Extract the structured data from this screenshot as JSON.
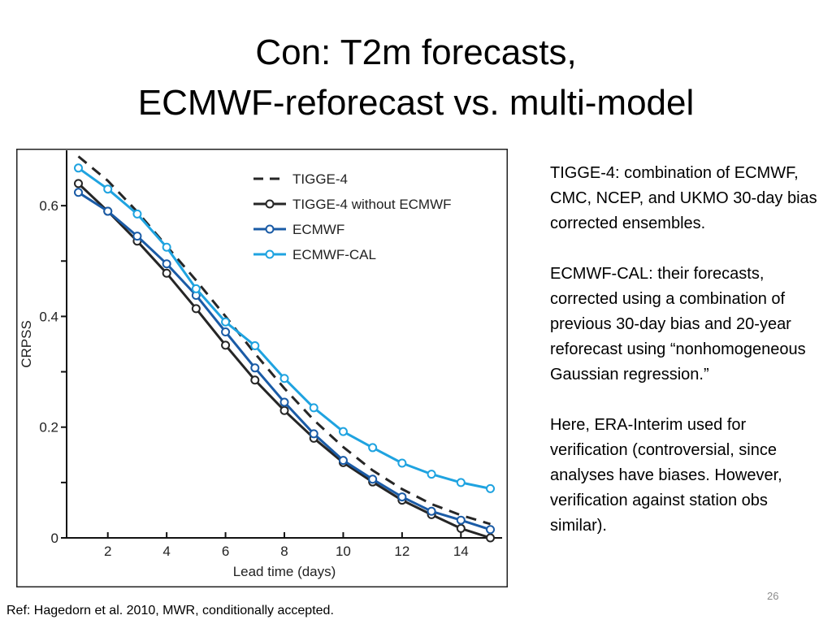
{
  "slide": {
    "title_line1": "Con: T2m forecasts,",
    "title_line2": "ECMWF-reforecast vs. multi-model",
    "notes": [
      "TIGGE-4: combination of ECMWF, CMC, NCEP, and UKMO 30-day bias corrected ensembles.",
      "ECMWF-CAL: their forecasts, corrected using a combination of previous 30-day bias and 20-year reforecast using “nonhomogeneous Gaussian regression.”",
      "Here, ERA-Interim used for verification (controversial, since analyses have biases. However, verification against station obs similar)."
    ],
    "footnote": "Ref: Hagedorn et al. 2010, MWR, conditionally accepted.",
    "page_number": "26"
  },
  "chart_data": {
    "type": "line",
    "title": "",
    "xlabel": "Lead time (days)",
    "ylabel": "CRPSS",
    "xlim": [
      0.6,
      15.4
    ],
    "ylim": [
      0,
      0.7
    ],
    "xticks": [
      2,
      4,
      6,
      8,
      10,
      12,
      14
    ],
    "xticklabels": [
      "2",
      "4",
      "6",
      "8",
      "10",
      "12",
      "14"
    ],
    "yticks": [
      0,
      0.2,
      0.4,
      0.6
    ],
    "yticklabels": [
      "0",
      "0.2",
      "0.4",
      "0.6"
    ],
    "grid": false,
    "legend_position": "top-right",
    "x": [
      1,
      2,
      3,
      4,
      5,
      6,
      7,
      8,
      9,
      10,
      11,
      12,
      13,
      14,
      15
    ],
    "series": [
      {
        "name": "TIGGE-4",
        "color": "#262626",
        "style": "dashed",
        "markers": false,
        "values": [
          0.689,
          0.645,
          0.589,
          0.527,
          0.465,
          0.4,
          0.333,
          0.27,
          0.213,
          0.164,
          0.122,
          0.088,
          0.061,
          0.041,
          0.025
        ]
      },
      {
        "name": "TIGGE-4 without ECMWF",
        "color": "#262626",
        "style": "solid",
        "markers": true,
        "values": [
          0.64,
          0.59,
          0.536,
          0.478,
          0.414,
          0.348,
          0.285,
          0.23,
          0.18,
          0.136,
          0.101,
          0.068,
          0.042,
          0.017,
          0.0
        ]
      },
      {
        "name": "ECMWF",
        "color": "#1a5ba6",
        "style": "solid",
        "markers": true,
        "values": [
          0.624,
          0.59,
          0.545,
          0.495,
          0.438,
          0.372,
          0.307,
          0.245,
          0.188,
          0.14,
          0.106,
          0.074,
          0.048,
          0.032,
          0.015
        ]
      },
      {
        "name": "ECMWF-CAL",
        "color": "#1fa3e0",
        "style": "solid",
        "markers": true,
        "values": [
          0.668,
          0.63,
          0.585,
          0.525,
          0.45,
          0.39,
          0.347,
          0.288,
          0.235,
          0.192,
          0.163,
          0.135,
          0.115,
          0.1,
          0.089
        ]
      }
    ]
  }
}
